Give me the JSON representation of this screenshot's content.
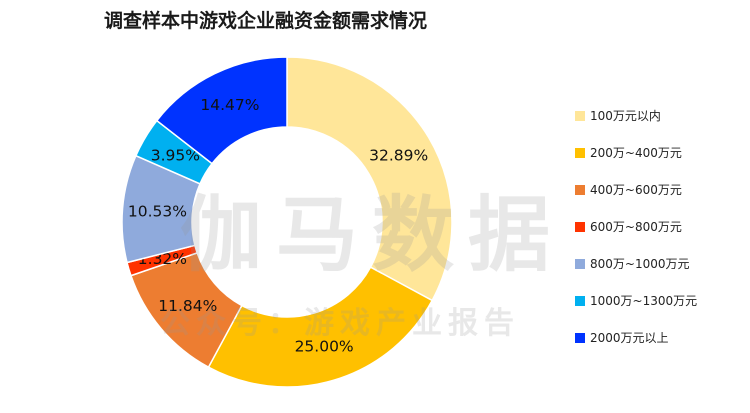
{
  "chart_data": {
    "type": "pie",
    "title": "调查样本中游戏企业融资金额需求情况",
    "categories": [
      "100万元以内",
      "200万~400万元",
      "400万~600万元",
      "600万~800万元",
      "800万~1000万元",
      "1000万~1300万元",
      "2000万元以上"
    ],
    "values": [
      32.89,
      25.0,
      11.84,
      1.32,
      10.53,
      3.95,
      14.47
    ],
    "data_labels": [
      "32.89%",
      "25.00%",
      "11.84%",
      "1.32%",
      "10.53%",
      "3.95%",
      "14.47%"
    ],
    "colors": [
      "#FFE699",
      "#FFC000",
      "#ED7D31",
      "#FF3300",
      "#8FAADC",
      "#00B0F0",
      "#0033FF"
    ],
    "legend_position": "right",
    "donut": true
  },
  "watermark": {
    "main": "伽马数据",
    "sub": "公众号：游戏产业报告"
  }
}
